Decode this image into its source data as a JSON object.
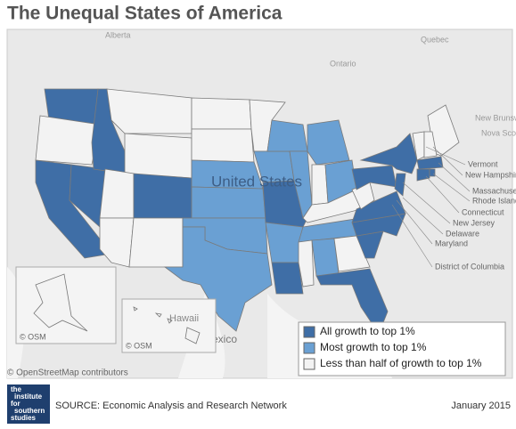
{
  "header": {
    "title": "The Unequal States of America"
  },
  "map": {
    "place_labels": [
      "Alberta",
      "Quebec",
      "Ontario",
      "New Brunswick",
      "Nova Scotia",
      "United States",
      "Mexico",
      "Hawaii"
    ],
    "callouts": [
      "Vermont",
      "New Hampshire",
      "Massachusetts",
      "Rhode Island",
      "Connecticut",
      "New Jersey",
      "Delaware",
      "Maryland",
      "District of Columbia"
    ],
    "inset_credits": [
      "© OSM",
      "© OSM"
    ],
    "attribution": "© OpenStreetMap contributors",
    "legend": [
      {
        "label": "All growth to top 1%",
        "color": "#3f6ea6"
      },
      {
        "label": "Most growth to top 1%",
        "color": "#6aa0d3"
      },
      {
        "label": "Less than half of growth to top 1%",
        "color": "#f3f3f3"
      }
    ]
  },
  "footer": {
    "logo": [
      "the",
      "institute",
      "for",
      "southern",
      "studies"
    ],
    "source": "SOURCE: Economic Analysis and Research Network",
    "date": "January 2015"
  }
}
